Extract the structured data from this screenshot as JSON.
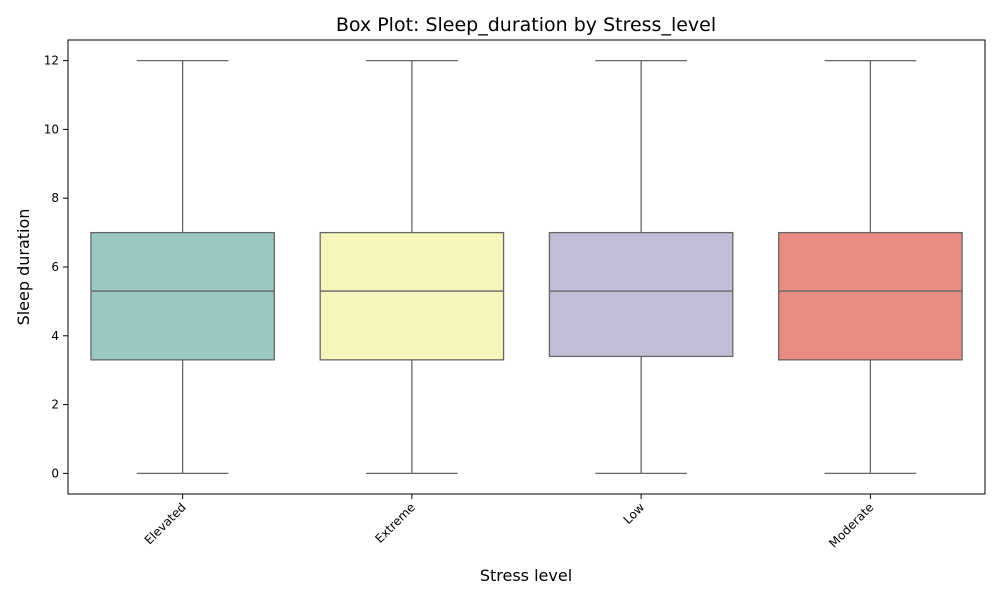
{
  "chart_data": {
    "type": "box",
    "title": "Box Plot: Sleep_duration by Stress_level",
    "xlabel": "Stress level",
    "ylabel": "Sleep duration",
    "ylim": [
      -0.6,
      12.6
    ],
    "yticks": [
      0,
      2,
      4,
      6,
      8,
      10,
      12
    ],
    "categories": [
      "Elevated",
      "Extreme",
      "Low",
      "Moderate"
    ],
    "boxes": [
      {
        "category": "Elevated",
        "min": 0,
        "q1": 3.3,
        "median": 5.3,
        "q3": 7.0,
        "max": 12,
        "color": "#99c9c1"
      },
      {
        "category": "Extreme",
        "min": 0,
        "q1": 3.3,
        "median": 5.3,
        "q3": 7.0,
        "max": 12,
        "color": "#f6f6bc"
      },
      {
        "category": "Low",
        "min": 0,
        "q1": 3.4,
        "median": 5.3,
        "q3": 7.0,
        "max": 12,
        "color": "#c1bdd6"
      },
      {
        "category": "Moderate",
        "min": 0,
        "q1": 3.3,
        "median": 5.3,
        "q3": 7.0,
        "max": 12,
        "color": "#e98d82"
      }
    ],
    "grid": false,
    "line_color": "#666666"
  }
}
